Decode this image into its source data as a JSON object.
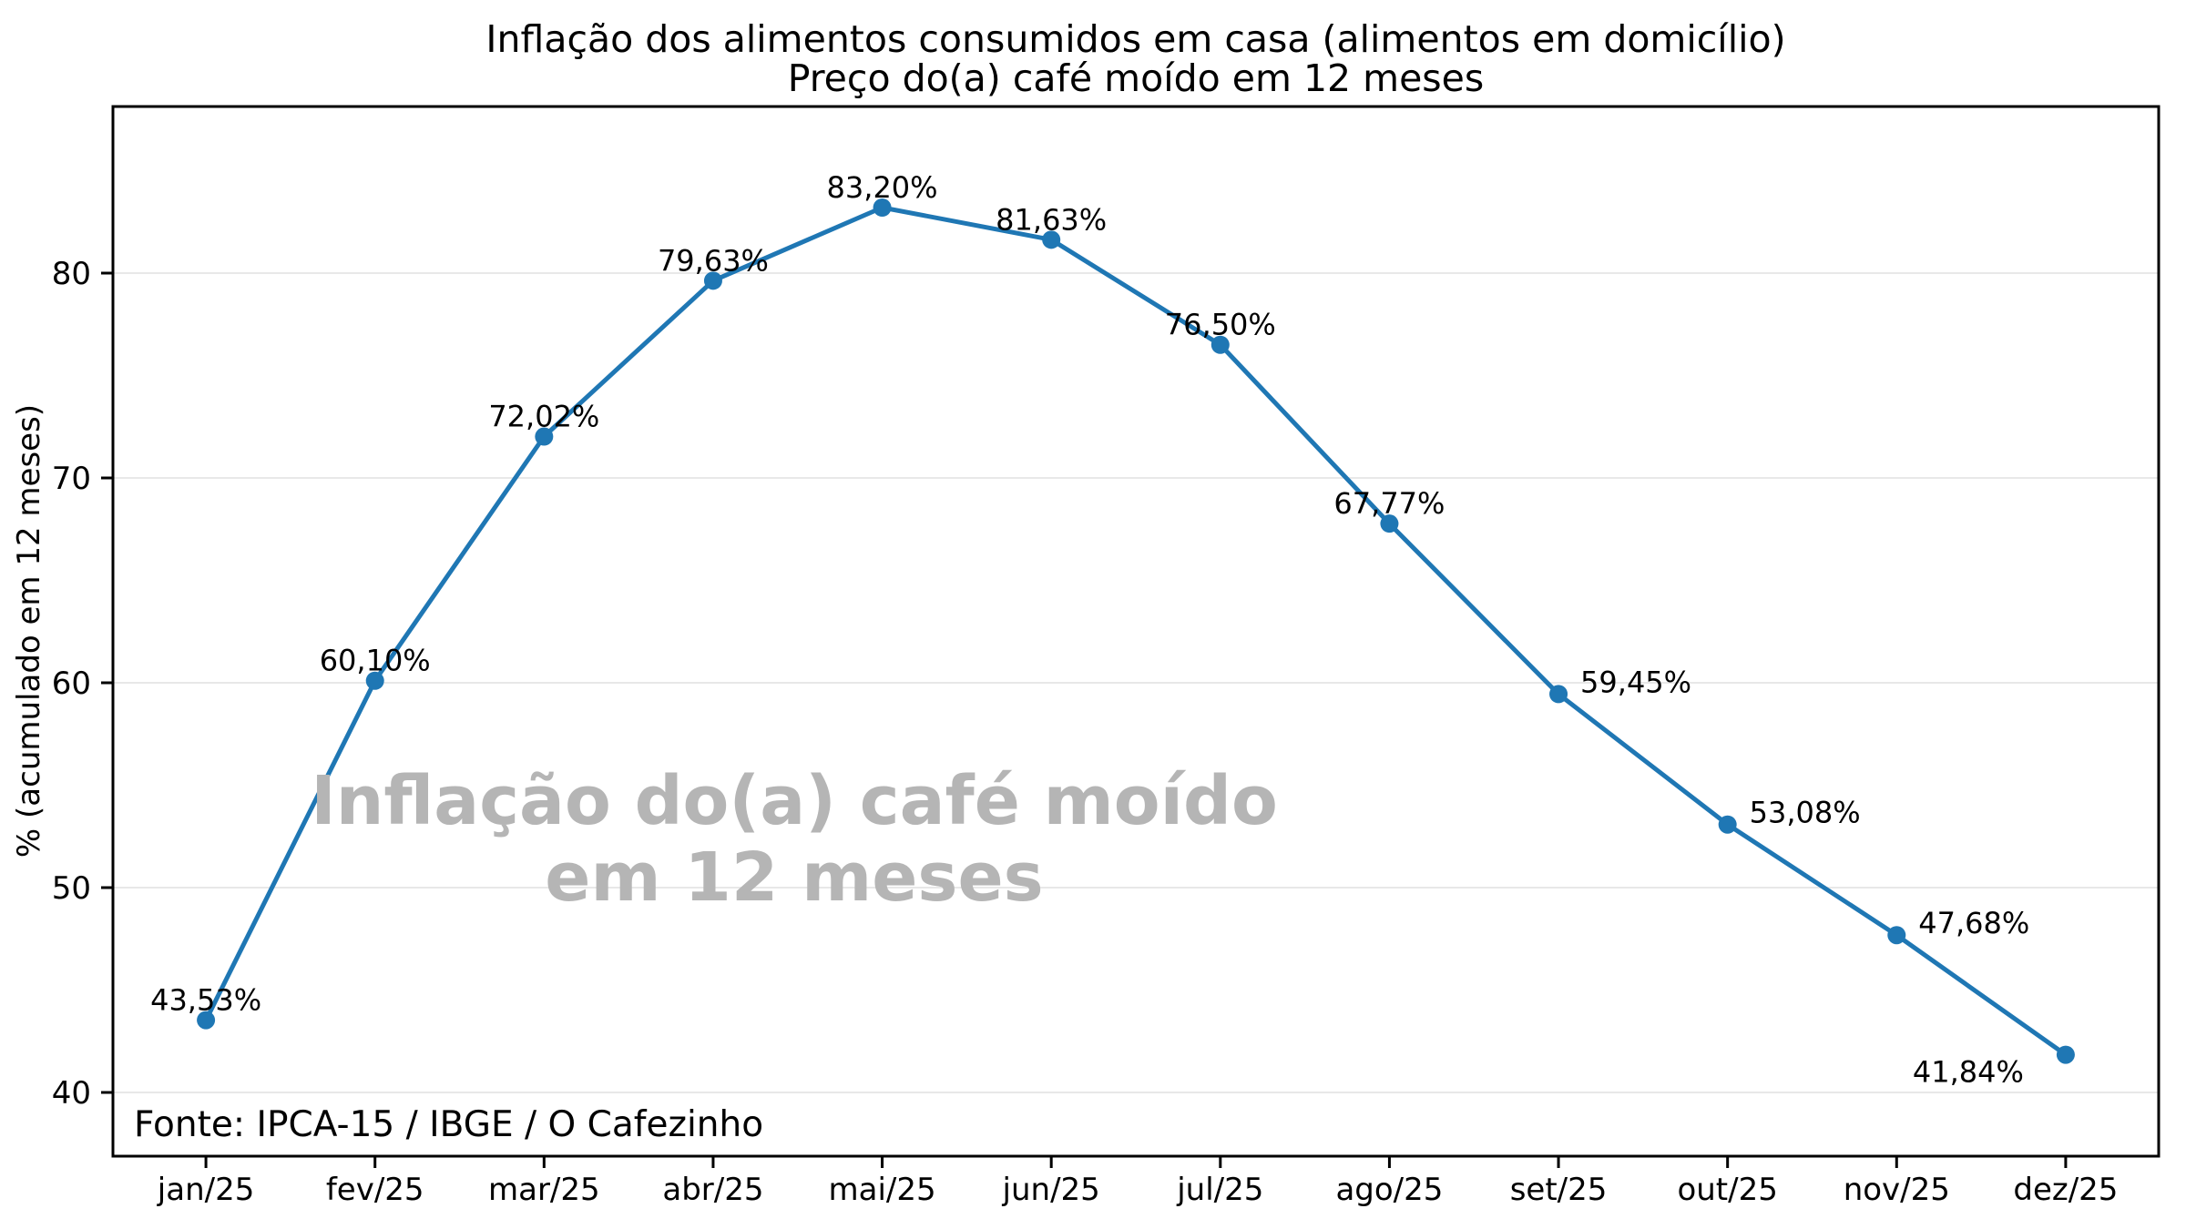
{
  "title": {
    "line1": "Inflação dos alimentos consumidos em casa (alimentos em domicílio)",
    "line2": "Preço do(a) café moído em 12 meses"
  },
  "watermark": {
    "line1": "Inflação do(a) café moído",
    "line2": "em 12 meses"
  },
  "source_note": "Fonte: IPCA-15 / IBGE / O Cafezinho",
  "chart_data": {
    "type": "line",
    "title": "Inflação dos alimentos consumidos em casa (alimentos em domicílio) — Preço do(a) café moído em 12 meses",
    "categories": [
      "jan/25",
      "fev/25",
      "mar/25",
      "abr/25",
      "mai/25",
      "jun/25",
      "jul/25",
      "ago/25",
      "set/25",
      "out/25",
      "nov/25",
      "dez/25"
    ],
    "values": [
      43.53,
      60.1,
      72.02,
      79.63,
      83.2,
      81.63,
      76.5,
      67.77,
      59.45,
      53.08,
      47.68,
      41.84
    ],
    "point_labels": [
      "43,53%",
      "60,10%",
      "72,02%",
      "79,63%",
      "83,20%",
      "81,63%",
      "76,50%",
      "67,77%",
      "59,45%",
      "53,08%",
      "47,68%",
      "41,84%"
    ],
    "label_placements": [
      "above",
      "above",
      "above",
      "above",
      "above",
      "above",
      "above",
      "above",
      "right",
      "right",
      "right",
      "left-below"
    ],
    "xlabel": "",
    "ylabel": "% (acumulado em 12 meses)",
    "yticks": [
      40,
      50,
      60,
      70,
      80
    ],
    "ylim": [
      36.889,
      88.133
    ],
    "x_index_lim": [
      -0.55,
      11.55
    ],
    "grid": "horizontal-only",
    "legend": "none"
  },
  "colors": {
    "line": "#1f77b4",
    "marker": "#1f77b4",
    "grid": "#e8e8e8",
    "spine": "#000000",
    "text": "#000000",
    "watermark": "#b5b5b5",
    "background": "#ffffff"
  }
}
